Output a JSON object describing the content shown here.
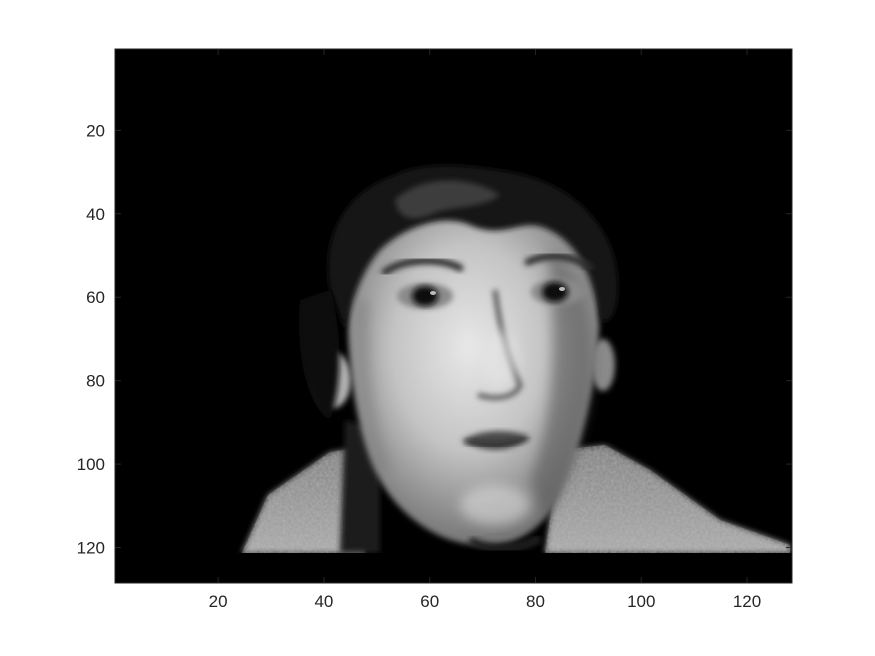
{
  "chart_data": {
    "type": "heatmap",
    "title": "",
    "xlabel": "",
    "ylabel": "",
    "xlim": [
      0.5,
      128.5
    ],
    "ylim": [
      128.5,
      0.5
    ],
    "y_direction": "reverse",
    "colormap": "gray",
    "grid": false,
    "legend": "none",
    "x_ticks": [
      20,
      40,
      60,
      80,
      100,
      120
    ],
    "y_ticks": [
      20,
      40,
      60,
      80,
      100,
      120
    ],
    "x_tick_labels": [
      "20",
      "40",
      "60",
      "80",
      "100",
      "120"
    ],
    "y_tick_labels": [
      "20",
      "40",
      "60",
      "80",
      "100",
      "120"
    ],
    "image_description": "128x128 grayscale face image on black background",
    "colors": {
      "background": "#000000",
      "axis": "#262626",
      "tick_text": "#262626"
    }
  }
}
